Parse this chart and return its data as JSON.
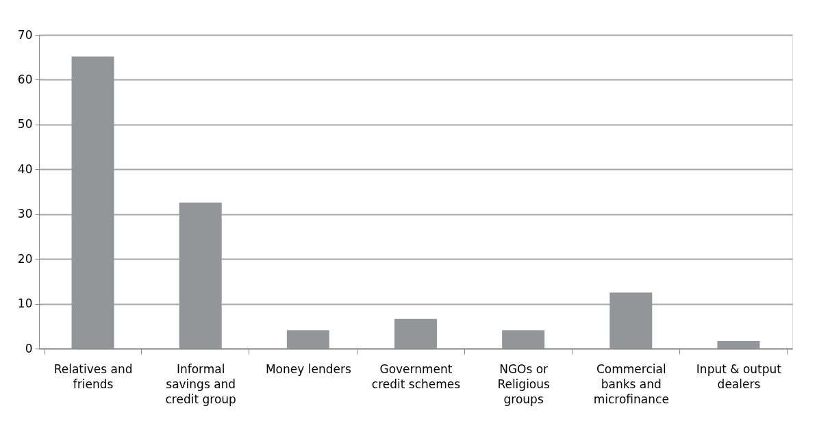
{
  "chart_data": {
    "type": "bar",
    "categories": [
      "Relatives and friends",
      "Informal savings and credit group",
      "Money lenders",
      "Government credit schemes",
      "NGOs or Religious groups",
      "Commercial banks and microfinance",
      "Input & output dealers"
    ],
    "values": [
      65.2,
      32.6,
      4.1,
      6.6,
      4.1,
      12.5,
      1.7
    ],
    "color": "#939598",
    "ylim": [
      0,
      70
    ],
    "yticks": [
      0,
      10,
      20,
      30,
      40,
      50,
      60,
      70
    ],
    "grid": "y"
  }
}
